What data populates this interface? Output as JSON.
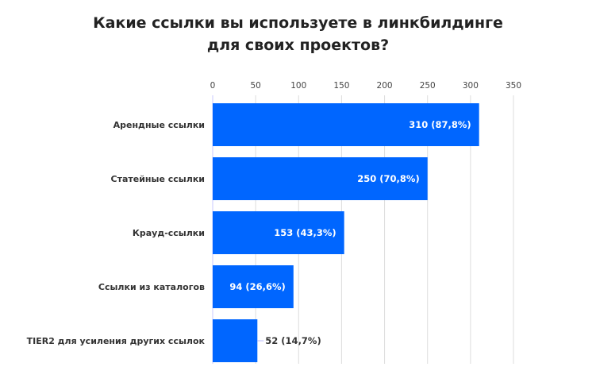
{
  "chart_data": {
    "type": "bar",
    "orientation": "horizontal",
    "title_line1": "Какие ссылки вы используете в линкбилдинге",
    "title_line2": "для своих проектов?",
    "categories": [
      "Арендные ссылки",
      "Статейные ссылки",
      "Крауд-ссылки",
      "Ссылки из каталогов",
      "TIER2 для усиления других ссылок"
    ],
    "values": [
      310,
      250,
      153,
      94,
      52
    ],
    "data_labels": [
      "310 (87,8%)",
      "250 (70,8%)",
      "153 (43,3%)",
      "94 (26,6%)",
      "52 (14,7%)"
    ],
    "xlim": [
      0,
      350
    ],
    "ticks": [
      0,
      50,
      100,
      150,
      200,
      250,
      300,
      350
    ],
    "tick_labels": [
      "0",
      "50",
      "100",
      "150",
      "200",
      "250",
      "300",
      "350"
    ],
    "axis_position": "top",
    "grid": true,
    "bar_color": "#0066ff",
    "grid_color": "#dddddd"
  }
}
